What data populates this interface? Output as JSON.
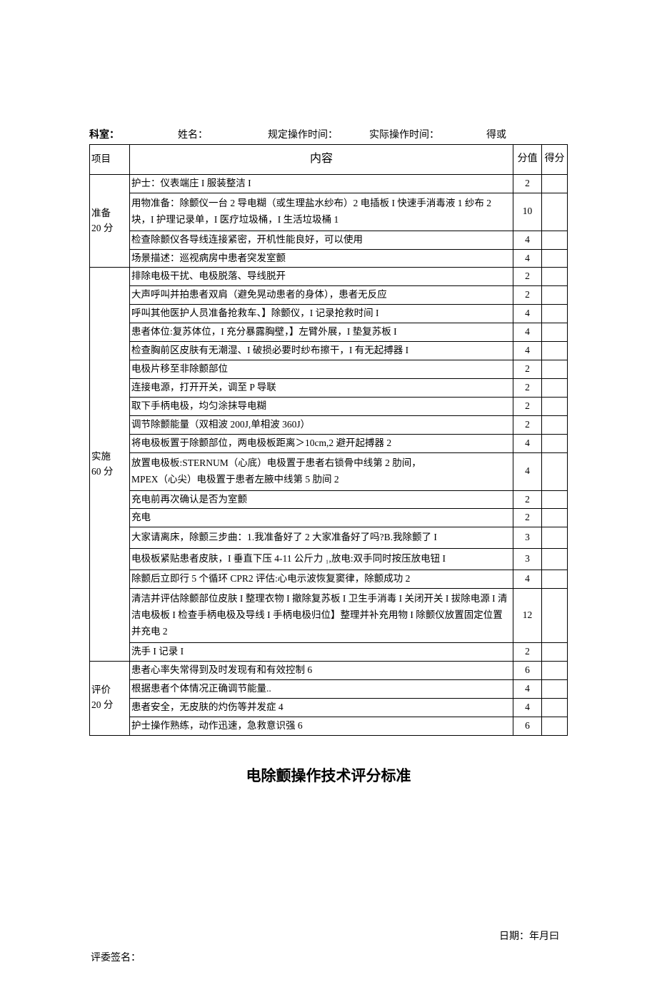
{
  "header": {
    "dept": "科室：",
    "name": "姓名：",
    "std_time": "规定操作时间：",
    "act_time": "实际操作时间：",
    "score_or": "得或"
  },
  "table_headers": {
    "project": "项目",
    "content": "内容",
    "score": "分值",
    "get": "得分"
  },
  "sections": [
    {
      "label": "准备\n20 分",
      "rows": [
        {
          "content": "护士：仪表端庄 I 服装整洁 I",
          "score": "2"
        },
        {
          "content": "用物准备：除颤仪一台 2 导电糊（或生理盐水纱布）2 电插板 I 快速手消毒液 1 纱布 2 块，I 护理记录单，I 医疗垃圾桶，I 生活垃圾桶 1",
          "score": "10",
          "multi": true
        },
        {
          "content": "检查除颤仪各导线连接紧密，开机性能良好，可以使用",
          "score": "4"
        },
        {
          "content": "场景描述：巡视病房中患者突发室颤",
          "score": "4"
        }
      ]
    },
    {
      "label": "实施\n60 分",
      "rows": [
        {
          "content": "排除电极干扰、电极脱落、导线脱开",
          "score": "2"
        },
        {
          "content": "大声呼叫并拍患者双肩（避免晃动患者的身体），患者无反应",
          "score": "2"
        },
        {
          "content": "呼叫其他医护人员准备抢救车、】除颤仪，I 记录抢救时间 I",
          "score": "4"
        },
        {
          "content": "患者体位:复苏体位，I 充分暴露胸壁，】左臂外展，I 垫复苏板 I",
          "score": "4"
        },
        {
          "content": "检查胸前区皮肤有无潮湿、I 破损必要时纱布擦干，I 有无起搏器 I",
          "score": "4"
        },
        {
          "content": "电极片移至非除颤部位",
          "score": "2"
        },
        {
          "content": "连接电源，打开开关，调至 P 导联",
          "score": "2"
        },
        {
          "content": "取下手柄电极，均匀涂抹导电糊",
          "score": "2"
        },
        {
          "content": "调节除颤能量（双相波 200J,单相波 360J）",
          "score": "2"
        },
        {
          "content": "将电极板置于除颤部位，两电极板距离＞10cm,2 避开起搏器 2",
          "score": "4"
        },
        {
          "content": "放置电极板:STERNUM（心底）电极置于患者右锁骨中线第 2 肋间，\nMPEX（心尖）电极置于患者左腋中线第 5 肋间 2",
          "score": "4",
          "multi": true
        },
        {
          "content": "充电前再次确认是否为室颤",
          "score": "2"
        },
        {
          "content": "充电",
          "score": "2"
        },
        {
          "content": "大家请离床，除颤三步曲：1.我准备好了 2 大家准备好了吗?B.我除颤了 I",
          "score": "3",
          "multi": true
        },
        {
          "content": "电极板紧贴患者皮肤，I 垂直下压 4-11 公斤力 ₁,放电:双手同时按压放电钮 I",
          "score": "3",
          "multi": true
        },
        {
          "content": "除颤后立即行 5 个循环 CPR2 评估:心电示波恢复窦律，除颤成功 2",
          "score": "4"
        },
        {
          "content": "清洁并评估除颤部位皮肤 I 整理衣物 I 撤除复苏板 I 卫生手消毒 I 关闭开关 I 拔除电源 I 清洁电极板 I 检查手柄电极及导线 I 手柄电极归位】整理并补充用物 I 除颤仪放置固定位置并充电 2",
          "score": "12",
          "multi": true
        },
        {
          "content": "洗手 I 记录 I",
          "score": "2"
        }
      ]
    },
    {
      "label": "评价\n20 分",
      "rows": [
        {
          "content": "患者心率失常得到及时发现有和有效控制 6",
          "score": "6"
        },
        {
          "content": "根据患者个体情况正确调节能量..",
          "score": "4"
        },
        {
          "content": "患者安全，无皮肤的灼伤等并发症 4",
          "score": "4"
        },
        {
          "content": "护士操作熟练，动作迅速，急救意识强 6",
          "score": "6"
        }
      ]
    }
  ],
  "title": "电除颤操作技术评分标准",
  "footer": {
    "date": "日期：年月曰",
    "sign": "评委签名："
  }
}
